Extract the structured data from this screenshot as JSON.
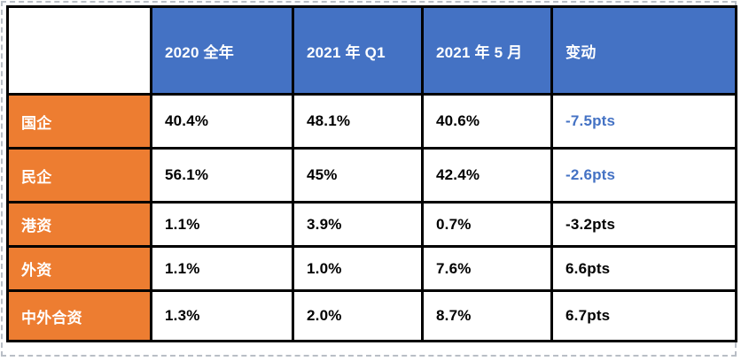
{
  "table": {
    "corner_label": "",
    "columns": [
      "2020 全年",
      "2021 年 Q1",
      "2021 年 5 月",
      "变动"
    ],
    "rows": [
      {
        "label": "国企",
        "values": [
          "40.4%",
          "48.1%",
          "40.6%"
        ],
        "change": "-7.5pts",
        "change_color": "#4472C4"
      },
      {
        "label": "民企",
        "values": [
          "56.1%",
          "45%",
          "42.4%"
        ],
        "change": "-2.6pts",
        "change_color": "#4472C4"
      },
      {
        "label": "港资",
        "values": [
          "1.1%",
          "3.9%",
          "0.7%"
        ],
        "change": "-3.2pts",
        "change_color": "#000000"
      },
      {
        "label": "外资",
        "values": [
          "1.1%",
          "1.0%",
          "7.6%"
        ],
        "change": "6.6pts",
        "change_color": "#000000"
      },
      {
        "label": "中外合资",
        "values": [
          "1.3%",
          "2.0%",
          "8.7%"
        ],
        "change": "6.7pts",
        "change_color": "#000000"
      }
    ],
    "colors": {
      "header_bg": "#4472C4",
      "label_bg": "#ED7D31",
      "border": "#000000",
      "change_highlight": "#4472C4",
      "selection_frame": "#b9bec6"
    }
  }
}
